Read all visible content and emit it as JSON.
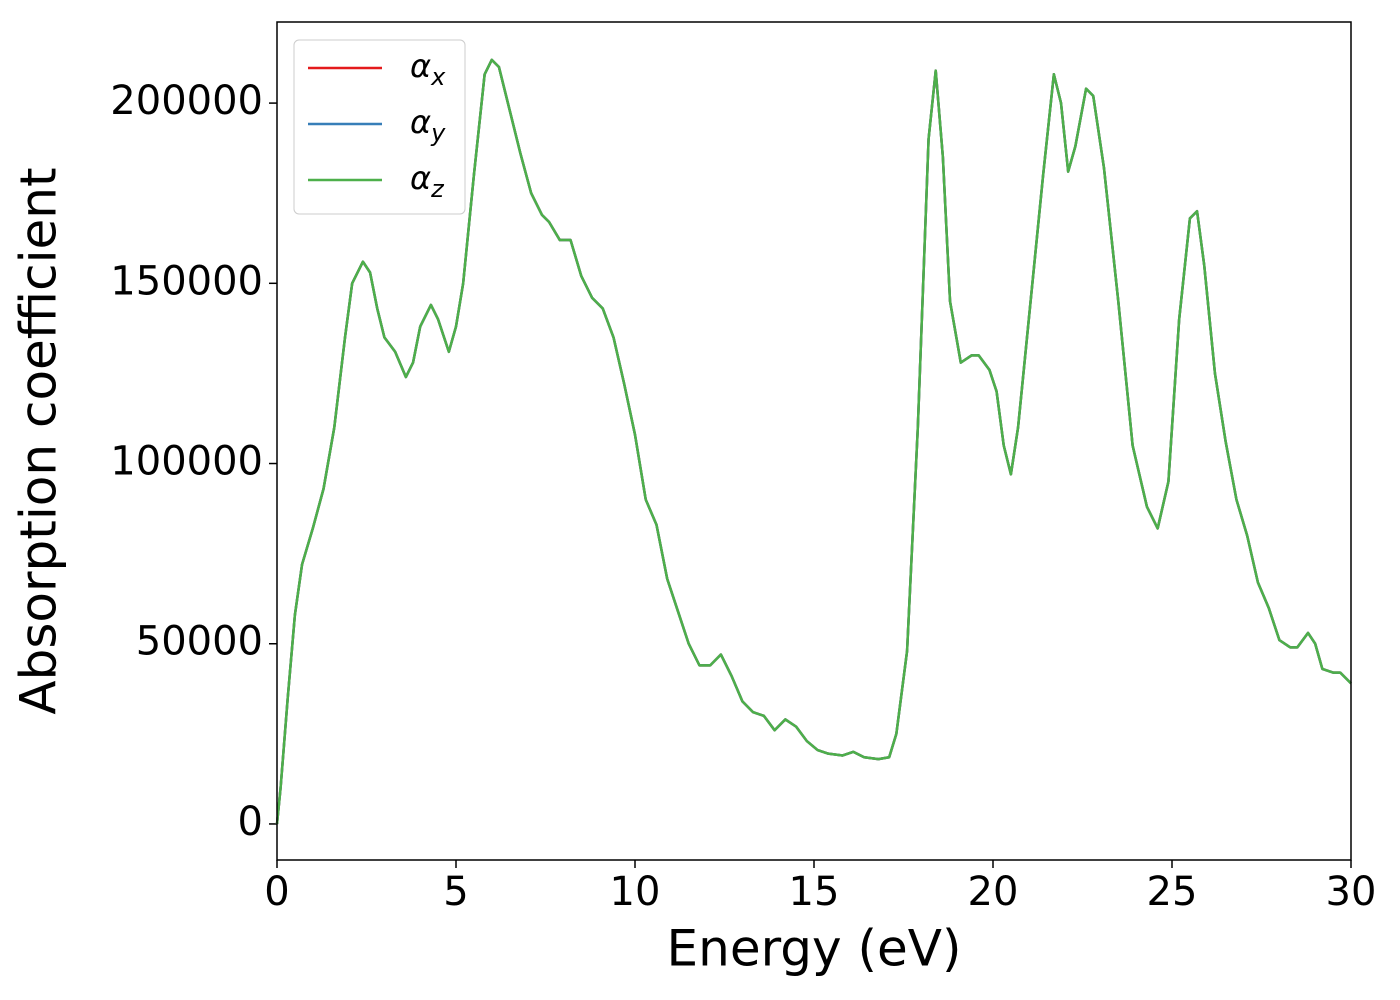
{
  "chart_data": {
    "type": "line",
    "x_label": "Energy (eV)",
    "y_label": "Absorption coefficient",
    "x": [
      0,
      0.1,
      0.3,
      0.5,
      0.7,
      1.0,
      1.3,
      1.6,
      1.9,
      2.1,
      2.4,
      2.6,
      2.8,
      3.0,
      3.3,
      3.6,
      3.8,
      4.0,
      4.3,
      4.5,
      4.8,
      5.0,
      5.2,
      5.5,
      5.8,
      6.0,
      6.2,
      6.5,
      6.8,
      7.1,
      7.4,
      7.6,
      7.9,
      8.2,
      8.5,
      8.8,
      9.1,
      9.4,
      9.7,
      10.0,
      10.3,
      10.6,
      10.9,
      11.2,
      11.5,
      11.8,
      12.1,
      12.4,
      12.7,
      13.0,
      13.3,
      13.6,
      13.9,
      14.2,
      14.5,
      14.8,
      15.1,
      15.4,
      15.8,
      16.1,
      16.4,
      16.8,
      17.1,
      17.3,
      17.6,
      17.9,
      18.2,
      18.4,
      18.6,
      18.8,
      19.1,
      19.4,
      19.6,
      19.9,
      20.1,
      20.3,
      20.5,
      20.7,
      21.0,
      21.4,
      21.7,
      21.9,
      22.1,
      22.3,
      22.6,
      22.8,
      23.1,
      23.5,
      23.9,
      24.3,
      24.6,
      24.9,
      25.2,
      25.5,
      25.7,
      25.9,
      26.2,
      26.5,
      26.8,
      27.1,
      27.4,
      27.7,
      28.0,
      28.3,
      28.5,
      28.8,
      29.0,
      29.2,
      29.5,
      29.7,
      30.0
    ],
    "series": [
      {
        "name": "αx",
        "color": "#e41a1c",
        "values": [
          0,
          10000,
          35000,
          58000,
          72000,
          82000,
          93000,
          110000,
          135000,
          150000,
          156000,
          153000,
          143000,
          135000,
          131000,
          124000,
          128000,
          138000,
          144000,
          140000,
          131000,
          138000,
          150000,
          180000,
          208000,
          212000,
          210000,
          198000,
          186000,
          175000,
          169000,
          167000,
          162000,
          162000,
          152000,
          146000,
          143000,
          135000,
          122000,
          108000,
          90000,
          83000,
          68000,
          59000,
          50000,
          44000,
          44000,
          47000,
          41000,
          34000,
          31000,
          30000,
          26000,
          29000,
          27000,
          23000,
          20500,
          19500,
          19000,
          20000,
          18500,
          18000,
          18500,
          25000,
          48000,
          110000,
          190000,
          209000,
          185000,
          145000,
          128000,
          130000,
          130000,
          126000,
          120000,
          105000,
          97000,
          110000,
          140000,
          180000,
          208000,
          200000,
          181000,
          188000,
          204000,
          202000,
          182000,
          145000,
          105000,
          88000,
          82000,
          95000,
          140000,
          168000,
          170000,
          155000,
          125000,
          106000,
          90000,
          80000,
          67000,
          60000,
          51000,
          49000,
          49000,
          53000,
          50000,
          43000,
          42000,
          42000,
          39000
        ]
      },
      {
        "name": "αy",
        "color": "#377eb8",
        "values": [
          0,
          10000,
          35000,
          58000,
          72000,
          82000,
          93000,
          110000,
          135000,
          150000,
          156000,
          153000,
          143000,
          135000,
          131000,
          124000,
          128000,
          138000,
          144000,
          140000,
          131000,
          138000,
          150000,
          180000,
          208000,
          212000,
          210000,
          198000,
          186000,
          175000,
          169000,
          167000,
          162000,
          162000,
          152000,
          146000,
          143000,
          135000,
          122000,
          108000,
          90000,
          83000,
          68000,
          59000,
          50000,
          44000,
          44000,
          47000,
          41000,
          34000,
          31000,
          30000,
          26000,
          29000,
          27000,
          23000,
          20500,
          19500,
          19000,
          20000,
          18500,
          18000,
          18500,
          25000,
          48000,
          110000,
          190000,
          209000,
          185000,
          145000,
          128000,
          130000,
          130000,
          126000,
          120000,
          105000,
          97000,
          110000,
          140000,
          180000,
          208000,
          200000,
          181000,
          188000,
          204000,
          202000,
          182000,
          145000,
          105000,
          88000,
          82000,
          95000,
          140000,
          168000,
          170000,
          155000,
          125000,
          106000,
          90000,
          80000,
          67000,
          60000,
          51000,
          49000,
          49000,
          53000,
          50000,
          43000,
          42000,
          42000,
          39000
        ]
      },
      {
        "name": "αz",
        "color": "#4daf4a",
        "values": [
          0,
          10000,
          35000,
          58000,
          72000,
          82000,
          93000,
          110000,
          135000,
          150000,
          156000,
          153000,
          143000,
          135000,
          131000,
          124000,
          128000,
          138000,
          144000,
          140000,
          131000,
          138000,
          150000,
          180000,
          208000,
          212000,
          210000,
          198000,
          186000,
          175000,
          169000,
          167000,
          162000,
          162000,
          152000,
          146000,
          143000,
          135000,
          122000,
          108000,
          90000,
          83000,
          68000,
          59000,
          50000,
          44000,
          44000,
          47000,
          41000,
          34000,
          31000,
          30000,
          26000,
          29000,
          27000,
          23000,
          20500,
          19500,
          19000,
          20000,
          18500,
          18000,
          18500,
          25000,
          48000,
          110000,
          190000,
          209000,
          185000,
          145000,
          128000,
          130000,
          130000,
          126000,
          120000,
          105000,
          97000,
          110000,
          140000,
          180000,
          208000,
          200000,
          181000,
          188000,
          204000,
          202000,
          182000,
          145000,
          105000,
          88000,
          82000,
          95000,
          140000,
          168000,
          170000,
          155000,
          125000,
          106000,
          90000,
          80000,
          67000,
          60000,
          51000,
          49000,
          49000,
          53000,
          50000,
          43000,
          42000,
          42000,
          39000
        ]
      }
    ],
    "xlim": [
      0,
      30
    ],
    "xticks": [
      0,
      5,
      10,
      15,
      20,
      25,
      30
    ],
    "ylim": [
      -10000,
      222500
    ],
    "yticks": [
      0,
      50000,
      100000,
      150000,
      200000
    ],
    "grid": false,
    "legend": "upper left"
  }
}
